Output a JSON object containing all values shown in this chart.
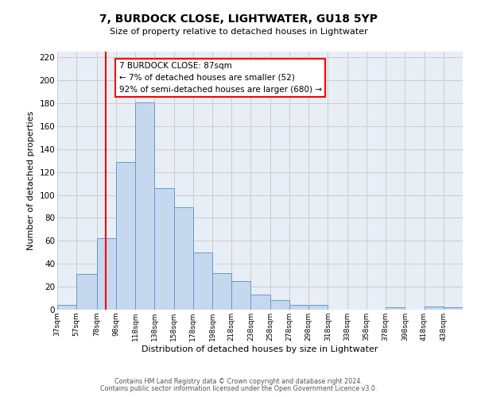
{
  "title": "7, BURDOCK CLOSE, LIGHTWATER, GU18 5YP",
  "subtitle": "Size of property relative to detached houses in Lightwater",
  "xlabel": "Distribution of detached houses by size in Lightwater",
  "ylabel": "Number of detached properties",
  "bin_edges": [
    37,
    57,
    78,
    98,
    118,
    138,
    158,
    178,
    198,
    218,
    238,
    258,
    278,
    298,
    318,
    338,
    358,
    378,
    398,
    418,
    438,
    458
  ],
  "bar_heights": [
    4,
    31,
    62,
    129,
    181,
    106,
    89,
    50,
    32,
    25,
    13,
    8,
    4,
    4,
    0,
    0,
    0,
    2,
    0,
    3,
    2
  ],
  "bar_color": "#c5d8ed",
  "bar_edge_color": "#6699cc",
  "grid_color": "#cccccc",
  "background_color": "#e8eef5",
  "red_line_x": 87,
  "annotation_line1": "7 BURDOCK CLOSE: 87sqm",
  "annotation_line2": "← 7% of detached houses are smaller (52)",
  "annotation_line3": "92% of semi-detached houses are larger (680) →",
  "ylim": [
    0,
    225
  ],
  "yticks": [
    0,
    20,
    40,
    60,
    80,
    100,
    120,
    140,
    160,
    180,
    200,
    220
  ],
  "tick_labels": [
    "37sqm",
    "57sqm",
    "78sqm",
    "98sqm",
    "118sqm",
    "138sqm",
    "158sqm",
    "178sqm",
    "198sqm",
    "218sqm",
    "238sqm",
    "258sqm",
    "278sqm",
    "298sqm",
    "318sqm",
    "338sqm",
    "358sqm",
    "378sqm",
    "398sqm",
    "418sqm",
    "438sqm"
  ],
  "title_fontsize": 10,
  "subtitle_fontsize": 8,
  "ylabel_fontsize": 8,
  "xlabel_fontsize": 8,
  "tick_fontsize": 6.5,
  "ytick_fontsize": 7.5,
  "annotation_fontsize": 7.5,
  "footer_fontsize": 5.8,
  "footer1": "Contains HM Land Registry data © Crown copyright and database right 2024.",
  "footer2": "Contains public sector information licensed under the Open Government Licence v3.0."
}
